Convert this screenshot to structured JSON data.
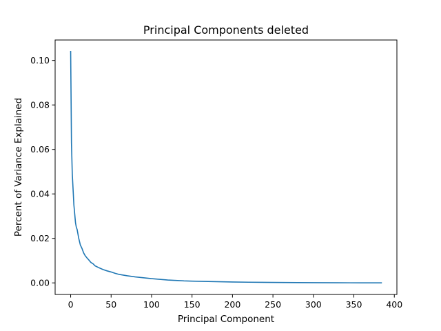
{
  "chart_data": {
    "type": "line",
    "title": "Principal Components deleted",
    "xlabel": "Principal Component",
    "ylabel": "Percent of Variance Explained",
    "xlim": [
      -19.2,
      403.2
    ],
    "ylim": [
      -0.0052,
      0.1092
    ],
    "xticks": [
      0,
      50,
      100,
      150,
      200,
      250,
      300,
      350,
      400
    ],
    "xtick_labels": [
      "0",
      "50",
      "100",
      "150",
      "200",
      "250",
      "300",
      "350",
      "400"
    ],
    "yticks": [
      0.0,
      0.02,
      0.04,
      0.06,
      0.08,
      0.1
    ],
    "ytick_labels": [
      "0.00",
      "0.02",
      "0.04",
      "0.06",
      "0.08",
      "0.10"
    ],
    "grid": false,
    "legend": "none",
    "series": [
      {
        "color": "#1f77b4",
        "x": [
          0,
          1,
          2,
          3,
          4,
          5,
          6,
          7,
          8,
          9,
          10,
          12,
          14,
          16,
          18,
          20,
          22,
          25,
          28,
          30,
          35,
          40,
          45,
          50,
          55,
          60,
          70,
          80,
          90,
          100,
          110,
          120,
          130,
          140,
          150,
          160,
          180,
          200,
          220,
          250,
          280,
          300,
          330,
          360,
          384
        ],
        "y": [
          0.104,
          0.063,
          0.049,
          0.042,
          0.035,
          0.031,
          0.027,
          0.025,
          0.024,
          0.022,
          0.02,
          0.017,
          0.0155,
          0.0135,
          0.0122,
          0.0113,
          0.0105,
          0.0092,
          0.0085,
          0.0077,
          0.0068,
          0.006,
          0.0054,
          0.0049,
          0.0043,
          0.0038,
          0.0032,
          0.0027,
          0.0023,
          0.0019,
          0.0016,
          0.0013,
          0.0011,
          0.0009,
          0.0008,
          0.0007,
          0.00055,
          0.0004,
          0.0003,
          0.0002,
          0.00012,
          8e-05,
          4e-05,
          2e-05,
          1e-05
        ]
      }
    ]
  }
}
